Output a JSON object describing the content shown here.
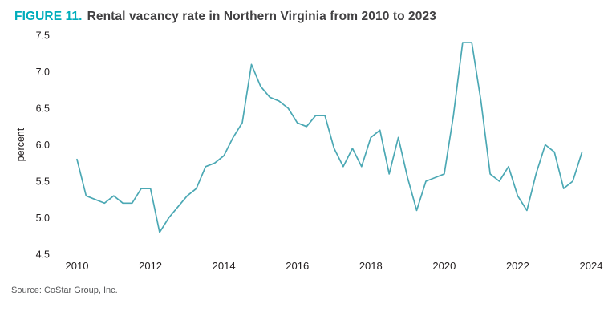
{
  "figure": {
    "label": "FIGURE 11.",
    "title": "Rental vacancy rate in Northern Virginia from 2010 to 2023"
  },
  "source": "Source: CoStar Group, Inc.",
  "colors": {
    "accent": "#00adbb",
    "line": "#4ba8b4",
    "title_text": "#414042",
    "tick_text": "#231f20",
    "source_text": "#58595b"
  },
  "chart_data": {
    "type": "line",
    "title": "Rental vacancy rate in Northern Virginia from 2010 to 2023",
    "xlabel": "",
    "ylabel": "percent",
    "series_name": "Rental vacancy rate (%)",
    "x_start": 2010,
    "x_step": 0.25,
    "xlim": [
      2010,
      2024
    ],
    "ylim": [
      4.5,
      7.5
    ],
    "x_ticks": [
      2010,
      2012,
      2014,
      2016,
      2018,
      2020,
      2022,
      2024
    ],
    "y_ticks": [
      4.5,
      5.0,
      5.5,
      6.0,
      6.5,
      7.0,
      7.5
    ],
    "grid": false,
    "legend": false,
    "values": [
      5.8,
      5.3,
      5.25,
      5.2,
      5.3,
      5.2,
      5.2,
      5.4,
      5.4,
      4.8,
      5.0,
      5.15,
      5.3,
      5.4,
      5.7,
      5.75,
      5.85,
      6.1,
      6.3,
      7.1,
      6.8,
      6.65,
      6.6,
      6.5,
      6.3,
      6.25,
      6.4,
      6.4,
      5.95,
      5.7,
      5.95,
      5.7,
      6.1,
      6.2,
      5.6,
      6.1,
      5.55,
      5.1,
      5.5,
      5.55,
      5.6,
      6.4,
      7.4,
      7.4,
      6.6,
      5.6,
      5.5,
      5.7,
      5.3,
      5.1,
      5.6,
      6.0,
      5.9,
      5.4,
      5.5,
      5.9
    ]
  }
}
